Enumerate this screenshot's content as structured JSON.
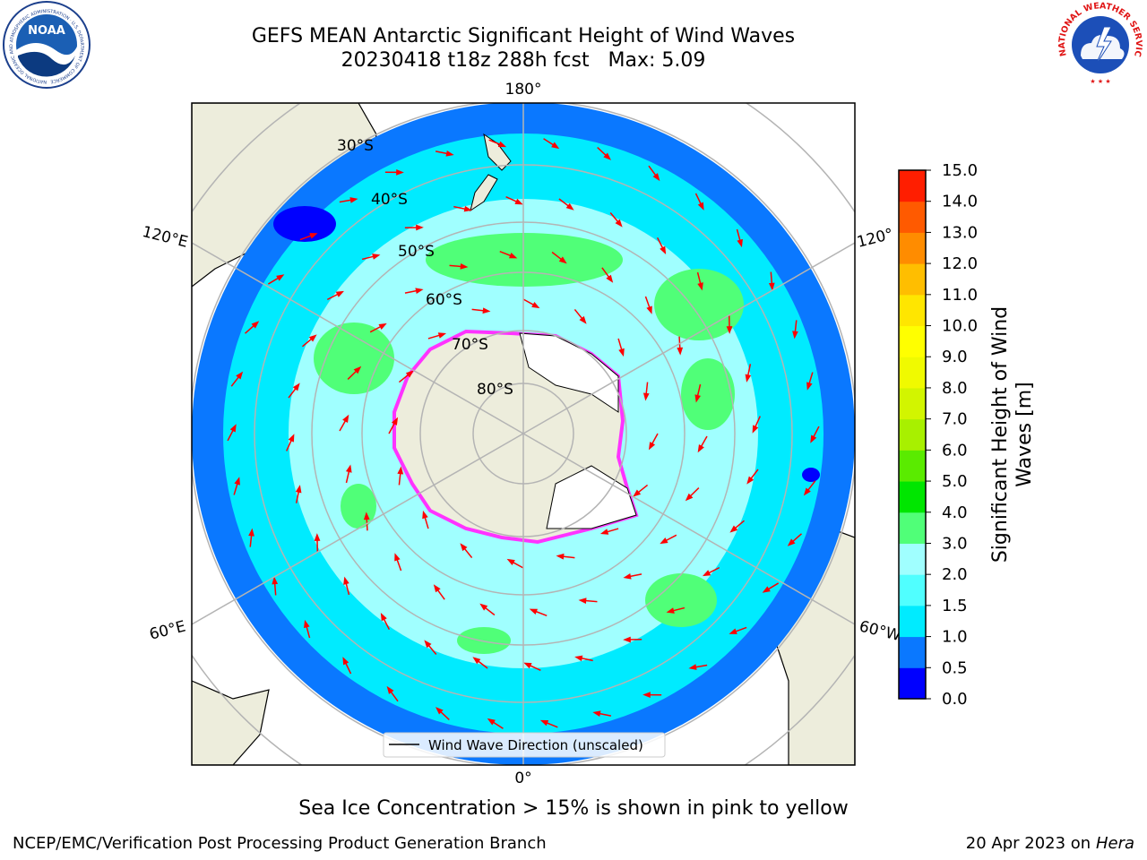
{
  "header": {
    "title_line1": "GEFS MEAN Antarctic Significant Height of Wind Waves",
    "title_line2": "20230418 t18z 288h fcst   Max: 5.09"
  },
  "map": {
    "lon_labels": {
      "top": "180°",
      "bottom": "0°",
      "upper_left": "120°E",
      "lower_left": "60°E",
      "upper_right": "120°",
      "lower_right": "60°W"
    },
    "lat_labels": [
      "30°S",
      "40°S",
      "50°S",
      "60°S",
      "70°S",
      "80°S"
    ],
    "legend_label": "Wind Wave Direction (unscaled)"
  },
  "colorbar": {
    "label": "Significant Height of Wind Waves [m]",
    "label_line1": "Significant Height of Wind",
    "label_line2": "Waves [m]",
    "ticks": [
      "0.0",
      "0.5",
      "1.0",
      "1.5",
      "2.0",
      "3.0",
      "4.0",
      "5.0",
      "6.0",
      "7.0",
      "8.0",
      "9.0",
      "10.0",
      "11.0",
      "12.0",
      "13.0",
      "14.0",
      "15.0"
    ],
    "colors": [
      "#0000ff",
      "#0a78ff",
      "#00ebff",
      "#50ffff",
      "#a0ffff",
      "#50ff78",
      "#00e600",
      "#5aeb00",
      "#a8f000",
      "#d2f500",
      "#f0fa00",
      "#ffff00",
      "#ffe600",
      "#ffbe00",
      "#ff8c00",
      "#ff5a00",
      "#ff1e00"
    ]
  },
  "colors": {
    "land": "#ededdc",
    "ice_fill": "#ffffff",
    "ice_edge": "#ff33ff",
    "arrow": "#ff0000",
    "grid": "#b4b4b4"
  },
  "captions": {
    "ice_note": "Sea Ice Concentration > 15% is shown in pink to yellow",
    "footer_left": "NCEP/EMC/Verification Post Processing Product Generation Branch",
    "footer_date": "20 Apr 2023 on ",
    "footer_machine": "Hera"
  },
  "logos": {
    "noaa": "NOAA",
    "noaa_ring": "NATIONAL OCEANIC AND ATMOSPHERIC ADMINISTRATION · U.S. DEPARTMENT OF COMMERCE",
    "nws": "NATIONAL WEATHER SERVICE"
  }
}
